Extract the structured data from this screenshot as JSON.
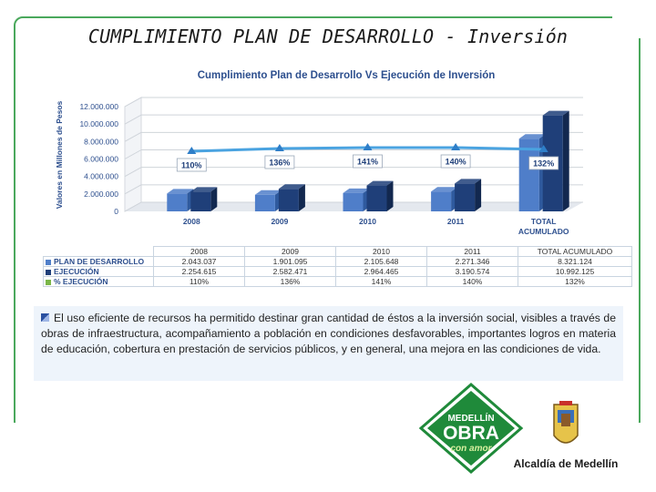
{
  "slide_title": "CUMPLIMIENTO PLAN DE DESARROLLO - Inversión",
  "chart_data": {
    "type": "bar",
    "title": "Cumplimiento Plan de Desarrollo Vs Ejecución de Inversión",
    "ylabel": "Valores en Millones de Pesos",
    "xlabel": "",
    "ylim": [
      0,
      12000000
    ],
    "yticks": [
      "0",
      "2.000.000",
      "4.000.000",
      "6.000.000",
      "8.000.000",
      "10.000.000",
      "12.000.000"
    ],
    "categories": [
      "2008",
      "2009",
      "2010",
      "2011",
      "TOTAL ACUMULADO"
    ],
    "category_lines": [
      [
        "2008"
      ],
      [
        "2009"
      ],
      [
        "2010"
      ],
      [
        "2011"
      ],
      [
        "TOTAL",
        "ACUMULADO"
      ]
    ],
    "series": [
      {
        "name": "PLAN DE DESARROLLO",
        "values": [
          2043037,
          1901095,
          2105648,
          2271346,
          8321124
        ],
        "color": "#4f7ec9"
      },
      {
        "name": "EJECUCIÓN",
        "values": [
          2254615,
          2582471,
          2964465,
          3190574,
          10992125
        ],
        "color": "#1f3f79"
      },
      {
        "name": "% EJECUCIÓN",
        "values": [
          110,
          136,
          141,
          140,
          132
        ],
        "color": "#4aa3e0"
      }
    ],
    "pct_labels": [
      "110%",
      "136%",
      "141%",
      "140%",
      "132%"
    ],
    "table": {
      "header": [
        "2008",
        "2009",
        "2010",
        "2011",
        "TOTAL ACUMULADO"
      ],
      "rows": [
        {
          "label": "PLAN DE DESARROLLO",
          "color": "#4f7ec9",
          "cells": [
            "2.043.037",
            "1.901.095",
            "2.105.648",
            "2.271.346",
            "8.321.124"
          ]
        },
        {
          "label": "EJECUCIÓN",
          "color": "#1f3f79",
          "cells": [
            "2.254.615",
            "2.582.471",
            "2.964.465",
            "3.190.574",
            "10.992.125"
          ]
        },
        {
          "label": "% EJECUCIÓN",
          "color": "#7ab648",
          "cells": [
            "110%",
            "136%",
            "141%",
            "140%",
            "132%"
          ]
        }
      ]
    },
    "grid": true,
    "legend": "table-left"
  },
  "body_text": "El uso eficiente de recursos ha permitido destinar gran cantidad de éstos a la inversión social, visibles a través de obras de infraestructura, acompañamiento a población en condiciones desfavorables, importantes logros en materia de educación, cobertura en prestación de servicios públicos, y en general, una mejora en las condiciones de vida.",
  "logo_medellin": {
    "line1": "MEDELLÍN",
    "line2": "OBRA",
    "line3": "con amor"
  },
  "logo_alcaldia": "Alcaldía de Medellín",
  "colors": {
    "frame": "#4aa85c",
    "title_blue": "#2d4f8e",
    "logo_green": "#1f8a3a"
  }
}
